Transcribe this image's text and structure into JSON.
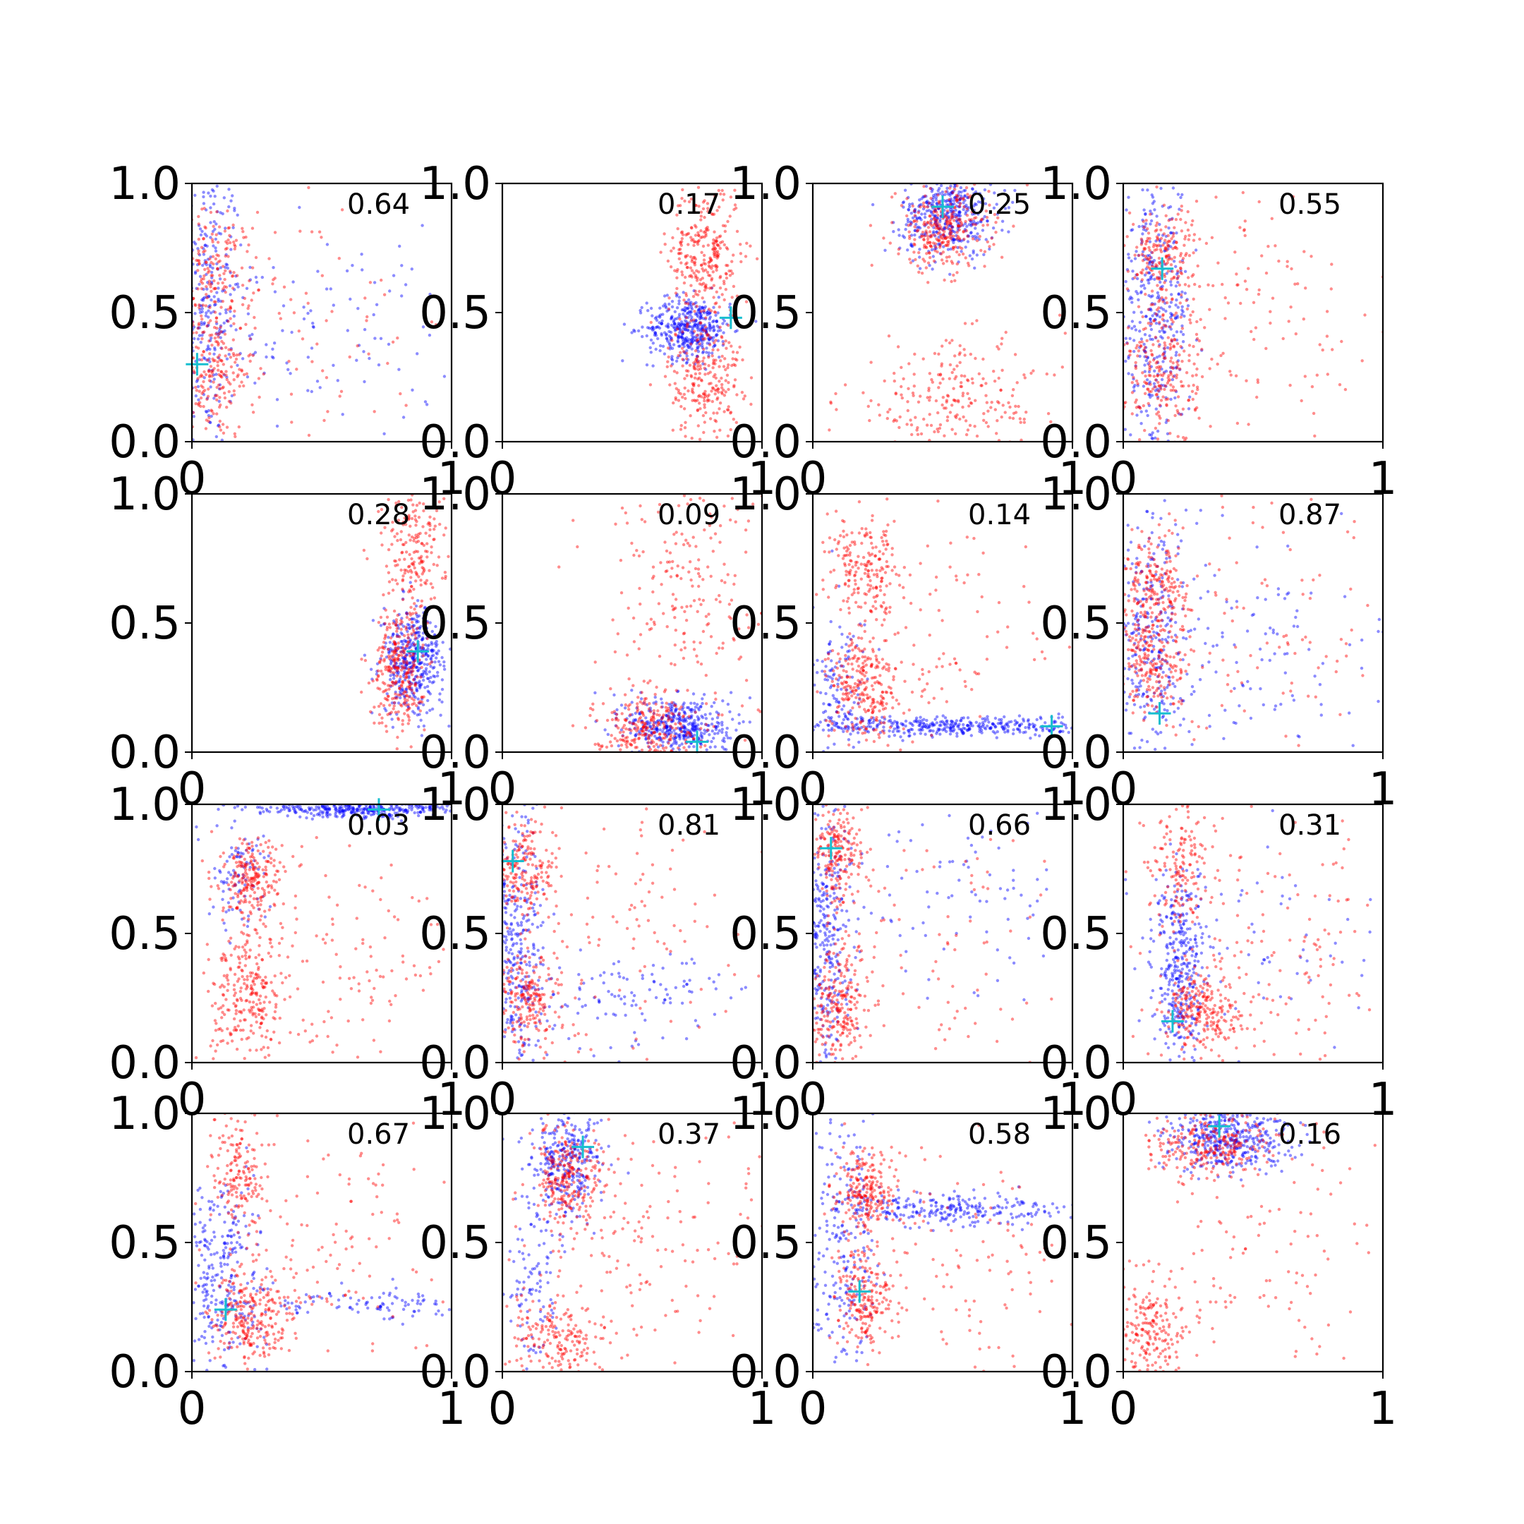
{
  "chart_data": {
    "type": "scatter",
    "layout": "4x4 grid of scatter subplots",
    "xlim": [
      0,
      1
    ],
    "ylim": [
      0,
      1
    ],
    "xticks": [
      "0",
      "1"
    ],
    "yticks": [
      "0.0",
      "0.5",
      "1.0"
    ],
    "grid": false,
    "colors": {
      "series_a": "#0000ff",
      "series_b": "#ff0000",
      "marker": "#17becf"
    },
    "panels": [
      {
        "annotation": "0.64",
        "marker": [
          0.02,
          0.3
        ],
        "a_clusters": [
          {
            "cx": 0.05,
            "cy": 0.55,
            "sx": 0.07,
            "sy": 0.28,
            "n": 320
          },
          {
            "cx": 0.45,
            "cy": 0.4,
            "sx": 0.3,
            "sy": 0.2,
            "n": 120
          }
        ],
        "b_clusters": [
          {
            "cx": 0.08,
            "cy": 0.65,
            "sx": 0.08,
            "sy": 0.12,
            "n": 200
          },
          {
            "cx": 0.08,
            "cy": 0.25,
            "sx": 0.08,
            "sy": 0.12,
            "n": 200
          },
          {
            "cx": 0.45,
            "cy": 0.5,
            "sx": 0.28,
            "sy": 0.3,
            "n": 80
          }
        ]
      },
      {
        "annotation": "0.17",
        "marker": [
          0.88,
          0.48
        ],
        "a_clusters": [
          {
            "cx": 0.72,
            "cy": 0.44,
            "sx": 0.08,
            "sy": 0.06,
            "n": 420
          }
        ],
        "b_clusters": [
          {
            "cx": 0.78,
            "cy": 0.72,
            "sx": 0.07,
            "sy": 0.14,
            "n": 300
          },
          {
            "cx": 0.78,
            "cy": 0.25,
            "sx": 0.07,
            "sy": 0.12,
            "n": 250
          }
        ]
      },
      {
        "annotation": "0.25",
        "marker": [
          0.5,
          0.91
        ],
        "a_clusters": [
          {
            "cx": 0.52,
            "cy": 0.88,
            "sx": 0.09,
            "sy": 0.08,
            "n": 420
          }
        ],
        "b_clusters": [
          {
            "cx": 0.5,
            "cy": 0.82,
            "sx": 0.09,
            "sy": 0.08,
            "n": 300
          },
          {
            "cx": 0.55,
            "cy": 0.15,
            "sx": 0.22,
            "sy": 0.12,
            "n": 260
          }
        ]
      },
      {
        "annotation": "0.55",
        "marker": [
          0.15,
          0.67
        ],
        "a_clusters": [
          {
            "cx": 0.12,
            "cy": 0.5,
            "sx": 0.07,
            "sy": 0.28,
            "n": 420
          }
        ],
        "b_clusters": [
          {
            "cx": 0.15,
            "cy": 0.72,
            "sx": 0.07,
            "sy": 0.1,
            "n": 200
          },
          {
            "cx": 0.15,
            "cy": 0.25,
            "sx": 0.07,
            "sy": 0.14,
            "n": 220
          },
          {
            "cx": 0.5,
            "cy": 0.5,
            "sx": 0.28,
            "sy": 0.25,
            "n": 140
          }
        ]
      },
      {
        "annotation": "0.28",
        "marker": [
          0.87,
          0.39
        ],
        "a_clusters": [
          {
            "cx": 0.85,
            "cy": 0.35,
            "sx": 0.06,
            "sy": 0.1,
            "n": 420
          }
        ],
        "b_clusters": [
          {
            "cx": 0.8,
            "cy": 0.32,
            "sx": 0.05,
            "sy": 0.12,
            "n": 300
          },
          {
            "cx": 0.85,
            "cy": 0.78,
            "sx": 0.06,
            "sy": 0.14,
            "n": 200
          }
        ]
      },
      {
        "annotation": "0.09",
        "marker": [
          0.75,
          0.04
        ],
        "a_clusters": [
          {
            "cx": 0.68,
            "cy": 0.1,
            "sx": 0.1,
            "sy": 0.06,
            "n": 420
          }
        ],
        "b_clusters": [
          {
            "cx": 0.55,
            "cy": 0.1,
            "sx": 0.1,
            "sy": 0.06,
            "n": 250
          },
          {
            "cx": 0.72,
            "cy": 0.6,
            "sx": 0.18,
            "sy": 0.25,
            "n": 220
          }
        ]
      },
      {
        "annotation": "0.14",
        "marker": [
          0.92,
          0.1
        ],
        "a_clusters": [
          {
            "cx": 0.55,
            "cy": 0.1,
            "sx": 0.28,
            "sy": 0.02,
            "n": 380
          },
          {
            "cx": 0.1,
            "cy": 0.25,
            "sx": 0.06,
            "sy": 0.14,
            "n": 120
          }
        ],
        "b_clusters": [
          {
            "cx": 0.2,
            "cy": 0.25,
            "sx": 0.07,
            "sy": 0.1,
            "n": 260
          },
          {
            "cx": 0.2,
            "cy": 0.7,
            "sx": 0.07,
            "sy": 0.1,
            "n": 200
          },
          {
            "cx": 0.55,
            "cy": 0.45,
            "sx": 0.25,
            "sy": 0.25,
            "n": 100
          }
        ]
      },
      {
        "annotation": "0.87",
        "marker": [
          0.14,
          0.15
        ],
        "a_clusters": [
          {
            "cx": 0.1,
            "cy": 0.45,
            "sx": 0.07,
            "sy": 0.25,
            "n": 300
          },
          {
            "cx": 0.5,
            "cy": 0.4,
            "sx": 0.25,
            "sy": 0.2,
            "n": 120
          }
        ],
        "b_clusters": [
          {
            "cx": 0.12,
            "cy": 0.65,
            "sx": 0.07,
            "sy": 0.1,
            "n": 200
          },
          {
            "cx": 0.12,
            "cy": 0.35,
            "sx": 0.07,
            "sy": 0.1,
            "n": 200
          },
          {
            "cx": 0.5,
            "cy": 0.45,
            "sx": 0.28,
            "sy": 0.28,
            "n": 120
          }
        ]
      },
      {
        "annotation": "0.03",
        "marker": [
          0.72,
          0.98
        ],
        "a_clusters": [
          {
            "cx": 0.65,
            "cy": 0.98,
            "sx": 0.2,
            "sy": 0.015,
            "n": 350
          },
          {
            "cx": 0.18,
            "cy": 0.75,
            "sx": 0.06,
            "sy": 0.12,
            "n": 100
          }
        ],
        "b_clusters": [
          {
            "cx": 0.23,
            "cy": 0.7,
            "sx": 0.06,
            "sy": 0.08,
            "n": 220
          },
          {
            "cx": 0.22,
            "cy": 0.25,
            "sx": 0.07,
            "sy": 0.12,
            "n": 250
          },
          {
            "cx": 0.55,
            "cy": 0.4,
            "sx": 0.25,
            "sy": 0.25,
            "n": 140
          }
        ]
      },
      {
        "annotation": "0.81",
        "marker": [
          0.04,
          0.78
        ],
        "a_clusters": [
          {
            "cx": 0.06,
            "cy": 0.45,
            "sx": 0.05,
            "sy": 0.28,
            "n": 320
          },
          {
            "cx": 0.45,
            "cy": 0.25,
            "sx": 0.25,
            "sy": 0.08,
            "n": 120
          }
        ],
        "b_clusters": [
          {
            "cx": 0.08,
            "cy": 0.75,
            "sx": 0.06,
            "sy": 0.1,
            "n": 200
          },
          {
            "cx": 0.1,
            "cy": 0.25,
            "sx": 0.07,
            "sy": 0.1,
            "n": 220
          },
          {
            "cx": 0.5,
            "cy": 0.55,
            "sx": 0.25,
            "sy": 0.28,
            "n": 120
          }
        ]
      },
      {
        "annotation": "0.66",
        "marker": [
          0.07,
          0.83
        ],
        "a_clusters": [
          {
            "cx": 0.05,
            "cy": 0.5,
            "sx": 0.05,
            "sy": 0.28,
            "n": 340
          },
          {
            "cx": 0.55,
            "cy": 0.7,
            "sx": 0.25,
            "sy": 0.2,
            "n": 100
          }
        ],
        "b_clusters": [
          {
            "cx": 0.1,
            "cy": 0.8,
            "sx": 0.05,
            "sy": 0.1,
            "n": 200
          },
          {
            "cx": 0.1,
            "cy": 0.22,
            "sx": 0.06,
            "sy": 0.12,
            "n": 240
          },
          {
            "cx": 0.45,
            "cy": 0.45,
            "sx": 0.25,
            "sy": 0.28,
            "n": 90
          }
        ]
      },
      {
        "annotation": "0.31",
        "marker": [
          0.19,
          0.16
        ],
        "a_clusters": [
          {
            "cx": 0.22,
            "cy": 0.35,
            "sx": 0.05,
            "sy": 0.18,
            "n": 360
          },
          {
            "cx": 0.6,
            "cy": 0.45,
            "sx": 0.25,
            "sy": 0.25,
            "n": 60
          }
        ],
        "b_clusters": [
          {
            "cx": 0.3,
            "cy": 0.2,
            "sx": 0.08,
            "sy": 0.08,
            "n": 250
          },
          {
            "cx": 0.22,
            "cy": 0.78,
            "sx": 0.06,
            "sy": 0.12,
            "n": 150
          },
          {
            "cx": 0.6,
            "cy": 0.45,
            "sx": 0.25,
            "sy": 0.28,
            "n": 150
          }
        ]
      },
      {
        "annotation": "0.67",
        "marker": [
          0.13,
          0.24
        ],
        "a_clusters": [
          {
            "cx": 0.12,
            "cy": 0.35,
            "sx": 0.08,
            "sy": 0.2,
            "n": 300
          },
          {
            "cx": 0.6,
            "cy": 0.26,
            "sx": 0.25,
            "sy": 0.03,
            "n": 100
          }
        ],
        "b_clusters": [
          {
            "cx": 0.22,
            "cy": 0.2,
            "sx": 0.08,
            "sy": 0.1,
            "n": 260
          },
          {
            "cx": 0.18,
            "cy": 0.75,
            "sx": 0.06,
            "sy": 0.12,
            "n": 160
          },
          {
            "cx": 0.55,
            "cy": 0.45,
            "sx": 0.25,
            "sy": 0.28,
            "n": 130
          }
        ]
      },
      {
        "annotation": "0.37",
        "marker": [
          0.31,
          0.87
        ],
        "a_clusters": [
          {
            "cx": 0.25,
            "cy": 0.8,
            "sx": 0.07,
            "sy": 0.1,
            "n": 300
          },
          {
            "cx": 0.12,
            "cy": 0.35,
            "sx": 0.05,
            "sy": 0.2,
            "n": 100
          }
        ],
        "b_clusters": [
          {
            "cx": 0.25,
            "cy": 0.75,
            "sx": 0.07,
            "sy": 0.1,
            "n": 250
          },
          {
            "cx": 0.22,
            "cy": 0.12,
            "sx": 0.1,
            "sy": 0.08,
            "n": 200
          },
          {
            "cx": 0.6,
            "cy": 0.5,
            "sx": 0.25,
            "sy": 0.25,
            "n": 150
          }
        ]
      },
      {
        "annotation": "0.58",
        "marker": [
          0.18,
          0.31
        ],
        "a_clusters": [
          {
            "cx": 0.55,
            "cy": 0.63,
            "sx": 0.25,
            "sy": 0.03,
            "n": 260
          },
          {
            "cx": 0.12,
            "cy": 0.45,
            "sx": 0.06,
            "sy": 0.25,
            "n": 220
          }
        ],
        "b_clusters": [
          {
            "cx": 0.2,
            "cy": 0.7,
            "sx": 0.06,
            "sy": 0.08,
            "n": 220
          },
          {
            "cx": 0.2,
            "cy": 0.28,
            "sx": 0.05,
            "sy": 0.1,
            "n": 200
          },
          {
            "cx": 0.55,
            "cy": 0.4,
            "sx": 0.25,
            "sy": 0.25,
            "n": 120
          }
        ]
      },
      {
        "annotation": "0.16",
        "marker": [
          0.37,
          0.95
        ],
        "a_clusters": [
          {
            "cx": 0.4,
            "cy": 0.9,
            "sx": 0.12,
            "sy": 0.06,
            "n": 400
          }
        ],
        "b_clusters": [
          {
            "cx": 0.35,
            "cy": 0.88,
            "sx": 0.12,
            "sy": 0.06,
            "n": 250
          },
          {
            "cx": 0.12,
            "cy": 0.15,
            "sx": 0.08,
            "sy": 0.12,
            "n": 220
          },
          {
            "cx": 0.55,
            "cy": 0.45,
            "sx": 0.25,
            "sy": 0.28,
            "n": 120
          }
        ]
      }
    ]
  }
}
